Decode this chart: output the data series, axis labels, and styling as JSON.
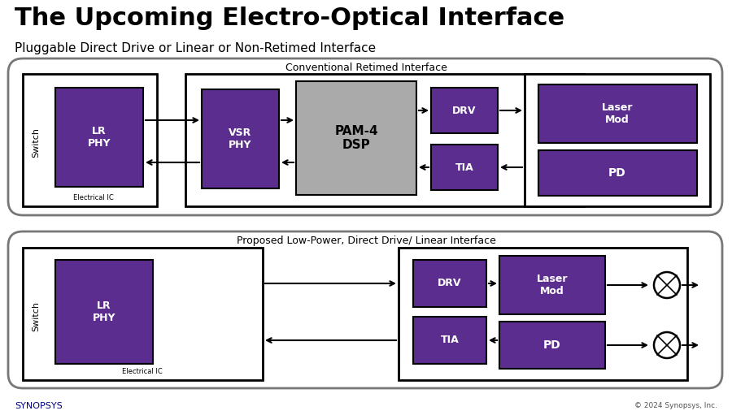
{
  "title": "The Upcoming Electro-Optical Interface",
  "subtitle": "Pluggable Direct Drive or Linear or Non-Retimed Interface",
  "bg_color": "#ffffff",
  "purple": "#5B2D8E",
  "gray_dsp": "#AAAAAA",
  "white": "#ffffff",
  "black": "#000000",
  "dark_gray": "#444444",
  "synopsys_color": "#000080",
  "footer_right": "© 2024 Synopsys, Inc.",
  "top_panel_label": "Conventional Retimed Interface",
  "bottom_panel_label": "Proposed Low-Power, Direct Drive/ Linear Interface",
  "elec_ic_label": "Electrical IC"
}
